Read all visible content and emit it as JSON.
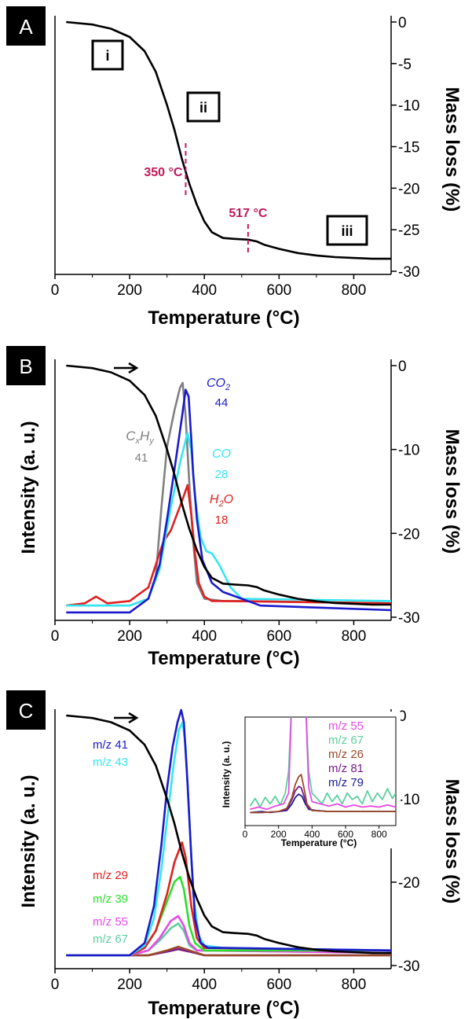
{
  "chart_data": [
    {
      "panel": "A",
      "type": "line",
      "xlabel": "Temperature (°C)",
      "ylabel_right": "Mass loss (%)",
      "xlim": [
        0,
        900
      ],
      "ylim": [
        -30,
        0
      ],
      "xticks": [
        "0",
        "200",
        "400",
        "600",
        "800"
      ],
      "yticks": [
        "0",
        "-5",
        "-10",
        "-15",
        "-20",
        "-25",
        "-30"
      ],
      "stages": [
        "i",
        "ii",
        "iii"
      ],
      "annotations": [
        {
          "text": "350 °C",
          "x": 350,
          "color": "#c2185b"
        },
        {
          "text": "517 °C",
          "x": 517,
          "color": "#c2185b"
        }
      ],
      "series": [
        {
          "color": "#000000",
          "x": [
            30,
            100,
            150,
            200,
            240,
            270,
            300,
            320,
            340,
            350,
            360,
            380,
            400,
            420,
            450,
            480,
            517,
            540,
            560,
            600,
            650,
            700,
            750,
            800,
            850,
            900
          ],
          "y": [
            0,
            -0.3,
            -0.8,
            -1.8,
            -3.5,
            -6,
            -10,
            -13,
            -16.5,
            -18,
            -19.5,
            -22,
            -24,
            -25.3,
            -26,
            -26.1,
            -26.2,
            -26.4,
            -26.8,
            -27.3,
            -27.8,
            -28.1,
            -28.3,
            -28.4,
            -28.5,
            -28.5
          ]
        }
      ]
    },
    {
      "panel": "B",
      "type": "line",
      "xlabel": "Temperature (°C)",
      "ylabel": "Intensity (a. u.)",
      "ylabel_right": "Mass loss (%)",
      "xlim": [
        0,
        900
      ],
      "ylim": [
        -30,
        0
      ],
      "xticks": [
        "0",
        "200",
        "400",
        "600",
        "800"
      ],
      "yticks": [
        "0",
        "-10",
        "-20",
        "-30"
      ],
      "series": [
        {
          "name": "mass",
          "color": "#000000",
          "x": [
            30,
            100,
            150,
            200,
            240,
            270,
            300,
            320,
            340,
            350,
            360,
            380,
            400,
            420,
            450,
            480,
            517,
            540,
            560,
            600,
            650,
            700,
            750,
            800,
            850,
            900
          ],
          "y": [
            0,
            -0.3,
            -0.8,
            -1.8,
            -3.5,
            -6,
            -10,
            -13,
            -16.5,
            -18,
            -19.5,
            -22,
            -24,
            -25.3,
            -26,
            -26.1,
            -26.2,
            -26.4,
            -26.8,
            -27.3,
            -27.8,
            -28.1,
            -28.3,
            -28.4,
            -28.5,
            -28.5
          ]
        },
        {
          "name": "CxHy",
          "mz": "41",
          "color": "#808080",
          "x": [
            30,
            200,
            250,
            270,
            285,
            300,
            320,
            335,
            342,
            350,
            360,
            370,
            380,
            400,
            450,
            500,
            900
          ],
          "y": [
            0.02,
            0.02,
            0.05,
            0.15,
            0.45,
            0.72,
            0.88,
            0.98,
            1.0,
            0.85,
            0.55,
            0.3,
            0.12,
            0.05,
            0.04,
            0.04,
            0.03
          ]
        },
        {
          "name": "CO2",
          "mz": "44",
          "color": "#1a1acc",
          "x": [
            30,
            200,
            250,
            280,
            300,
            320,
            340,
            350,
            358,
            365,
            370,
            380,
            395,
            420,
            450,
            500,
            550,
            900
          ],
          "y": [
            -0.01,
            -0.01,
            0.05,
            0.2,
            0.4,
            0.62,
            0.85,
            0.97,
            0.94,
            0.75,
            0.6,
            0.4,
            0.22,
            0.12,
            0.08,
            0.05,
            0.02,
            0.0
          ]
        },
        {
          "name": "CO",
          "mz": "28",
          "color": "#33e6f2",
          "x": [
            30,
            200,
            250,
            280,
            310,
            335,
            355,
            365,
            375,
            390,
            405,
            420,
            440,
            470,
            500,
            900
          ],
          "y": [
            0.02,
            0.02,
            0.05,
            0.18,
            0.45,
            0.65,
            0.78,
            0.7,
            0.5,
            0.32,
            0.26,
            0.25,
            0.2,
            0.1,
            0.05,
            0.04
          ]
        },
        {
          "name": "H2O",
          "mz": "18",
          "color": "#e02020",
          "x": [
            30,
            80,
            110,
            140,
            200,
            250,
            270,
            290,
            310,
            340,
            355,
            365,
            375,
            385,
            400,
            420,
            450,
            900
          ],
          "y": [
            0.02,
            0.03,
            0.06,
            0.03,
            0.04,
            0.1,
            0.2,
            0.3,
            0.35,
            0.48,
            0.55,
            0.42,
            0.25,
            0.12,
            0.06,
            0.04,
            0.04,
            0.03
          ]
        }
      ],
      "labels": [
        {
          "name": "CxHy",
          "mz": "41"
        },
        {
          "name": "CO2",
          "mz": "44"
        },
        {
          "name": "CO",
          "mz": "28"
        },
        {
          "name": "H2O",
          "mz": "18"
        }
      ]
    },
    {
      "panel": "C",
      "type": "line",
      "xlabel": "Temperature (°C)",
      "ylabel": "Intensity (a. u.)",
      "ylabel_right": "Mass loss (%)",
      "xlim": [
        0,
        900
      ],
      "ylim": [
        -30,
        0
      ],
      "xticks": [
        "0",
        "200",
        "400",
        "600",
        "800"
      ],
      "yticks": [
        "0",
        "-10",
        "-20",
        "-30"
      ],
      "series": [
        {
          "name": "mass",
          "color": "#000000",
          "x": [
            30,
            100,
            150,
            200,
            240,
            270,
            300,
            320,
            340,
            350,
            360,
            380,
            400,
            420,
            450,
            480,
            517,
            540,
            560,
            600,
            650,
            700,
            750,
            800,
            850,
            900
          ],
          "y": [
            0,
            -0.3,
            -0.8,
            -1.8,
            -3.5,
            -6,
            -10,
            -13,
            -16.5,
            -18,
            -19.5,
            -22,
            -24,
            -25.3,
            -26,
            -26.1,
            -26.2,
            -26.4,
            -26.8,
            -27.3,
            -27.8,
            -28.1,
            -28.3,
            -28.4,
            -28.5,
            -28.5
          ]
        },
        {
          "name": "m/z 41",
          "color": "#1a1acc",
          "x": [
            30,
            200,
            240,
            265,
            285,
            300,
            315,
            328,
            338,
            345,
            355,
            365,
            375,
            390,
            410,
            450,
            900
          ],
          "y": [
            0.0,
            0.0,
            0.05,
            0.2,
            0.45,
            0.68,
            0.85,
            0.95,
            1.0,
            0.95,
            0.7,
            0.4,
            0.15,
            0.05,
            0.03,
            0.03,
            0.02
          ]
        },
        {
          "name": "m/z 43",
          "color": "#33e6f2",
          "x": [
            30,
            200,
            240,
            265,
            285,
            300,
            318,
            332,
            342,
            350,
            360,
            370,
            385,
            400,
            450,
            900
          ],
          "y": [
            0.0,
            0.0,
            0.04,
            0.15,
            0.35,
            0.55,
            0.78,
            0.92,
            0.95,
            0.85,
            0.55,
            0.25,
            0.08,
            0.04,
            0.03,
            0.02
          ]
        },
        {
          "name": "m/z 29",
          "color": "#e02020",
          "x": [
            30,
            200,
            240,
            270,
            300,
            320,
            340,
            350,
            365,
            380,
            400,
            900
          ],
          "y": [
            0.0,
            0.0,
            0.03,
            0.1,
            0.25,
            0.38,
            0.46,
            0.4,
            0.2,
            0.07,
            0.03,
            0.02
          ]
        },
        {
          "name": "m/z 39",
          "color": "#2adf2a",
          "x": [
            30,
            200,
            240,
            270,
            300,
            320,
            335,
            345,
            360,
            375,
            400,
            900
          ],
          "y": [
            0.0,
            0.0,
            0.03,
            0.1,
            0.22,
            0.3,
            0.32,
            0.27,
            0.12,
            0.05,
            0.02,
            0.02
          ]
        },
        {
          "name": "m/z 55",
          "color": "#e64ae6",
          "x": [
            30,
            200,
            250,
            280,
            310,
            330,
            345,
            360,
            380,
            900
          ],
          "y": [
            0.0,
            0.0,
            0.02,
            0.07,
            0.14,
            0.16,
            0.12,
            0.05,
            0.02,
            0.01
          ]
        },
        {
          "name": "m/z 67",
          "color": "#5dcf9d",
          "x": [
            30,
            200,
            250,
            280,
            310,
            330,
            345,
            360,
            380,
            900
          ],
          "y": [
            0.0,
            0.0,
            0.02,
            0.06,
            0.11,
            0.13,
            0.1,
            0.04,
            0.02,
            0.01
          ]
        },
        {
          "name": "m/z 26",
          "color": "#9a4a2a",
          "x": [
            30,
            250,
            300,
            330,
            360,
            400,
            900
          ],
          "y": [
            0.0,
            0.0,
            0.02,
            0.035,
            0.02,
            0.0,
            0.0
          ]
        },
        {
          "name": "m/z 81",
          "color": "#7a1a8a",
          "x": [
            30,
            250,
            300,
            330,
            360,
            400,
            900
          ],
          "y": [
            0.0,
            0.0,
            0.015,
            0.025,
            0.015,
            0.0,
            0.0
          ]
        }
      ],
      "labels": [
        "m/z 41",
        "m/z 43",
        "m/z 29",
        "m/z 39",
        "m/z 55",
        "m/z 67"
      ],
      "inset": {
        "xlabel": "Temperature (°C)",
        "ylabel": "Intensity (a. u.)",
        "xlim": [
          0,
          900
        ],
        "xticks": [
          "0",
          "200",
          "400",
          "600",
          "800"
        ],
        "legend": [
          {
            "name": "m/z 55",
            "color": "#e64ae6"
          },
          {
            "name": "m/z 67",
            "color": "#5dcf9d"
          },
          {
            "name": "m/z 26",
            "color": "#9a4a2a"
          },
          {
            "name": "m/z 81",
            "color": "#7a1a8a"
          },
          {
            "name": "m/z 79",
            "color": "#1a1a99"
          }
        ],
        "series": [
          {
            "name": "m/z 67",
            "color": "#5dcf9d",
            "x": [
              30,
              60,
              90,
              120,
              150,
              180,
              210,
              240,
              260,
              280,
              300,
              320,
              340,
              360,
              380,
              400,
              430,
              460,
              490,
              520,
              550,
              580,
              610,
              640,
              670,
              700,
              730,
              760,
              790,
              820,
              850,
              880,
              900
            ],
            "y": [
              0.18,
              0.25,
              0.17,
              0.26,
              0.2,
              0.27,
              0.19,
              0.3,
              0.5,
              1.2,
              1.2,
              1.2,
              1.2,
              1.2,
              0.5,
              0.3,
              0.25,
              0.2,
              0.3,
              0.22,
              0.28,
              0.2,
              0.3,
              0.24,
              0.27,
              0.2,
              0.32,
              0.22,
              0.3,
              0.24,
              0.34,
              0.25,
              0.3
            ]
          },
          {
            "name": "m/z 55",
            "color": "#e64ae6",
            "x": [
              30,
              80,
              130,
              180,
              230,
              260,
              280,
              300,
              320,
              340,
              360,
              380,
              400,
              450,
              500,
              550,
              600,
              650,
              700,
              750,
              800,
              850,
              900
            ],
            "y": [
              0.15,
              0.17,
              0.15,
              0.18,
              0.2,
              0.3,
              1.2,
              1.2,
              1.2,
              1.2,
              1.2,
              0.35,
              0.22,
              0.2,
              0.18,
              0.2,
              0.17,
              0.19,
              0.17,
              0.18,
              0.17,
              0.19,
              0.17
            ]
          },
          {
            "name": "m/z 79",
            "color": "#1a1a99",
            "x": [
              30,
              100,
              150,
              200,
              250,
              280,
              300,
              320,
              340,
              360,
              380,
              420,
              500,
              600,
              700,
              800,
              900
            ],
            "y": [
              0.12,
              0.13,
              0.12,
              0.13,
              0.14,
              0.2,
              0.26,
              0.29,
              0.27,
              0.2,
              0.15,
              0.14,
              0.13,
              0.13,
              0.13,
              0.13,
              0.13
            ]
          },
          {
            "name": "m/z 81",
            "color": "#7a1a8a",
            "x": [
              30,
              100,
              200,
              250,
              280,
              300,
              320,
              335,
              350,
              370,
              400,
              500,
              600,
              700,
              800,
              900
            ],
            "y": [
              0.12,
              0.12,
              0.13,
              0.15,
              0.24,
              0.32,
              0.36,
              0.35,
              0.28,
              0.18,
              0.14,
              0.13,
              0.13,
              0.13,
              0.13,
              0.13
            ]
          },
          {
            "name": "m/z 26",
            "color": "#9a4a2a",
            "x": [
              30,
              100,
              200,
              250,
              280,
              300,
              320,
              335,
              350,
              370,
              400,
              500,
              600,
              700,
              800,
              900
            ],
            "y": [
              0.12,
              0.12,
              0.13,
              0.16,
              0.26,
              0.38,
              0.45,
              0.47,
              0.36,
              0.2,
              0.14,
              0.13,
              0.13,
              0.13,
              0.13,
              0.13
            ]
          }
        ]
      }
    }
  ]
}
